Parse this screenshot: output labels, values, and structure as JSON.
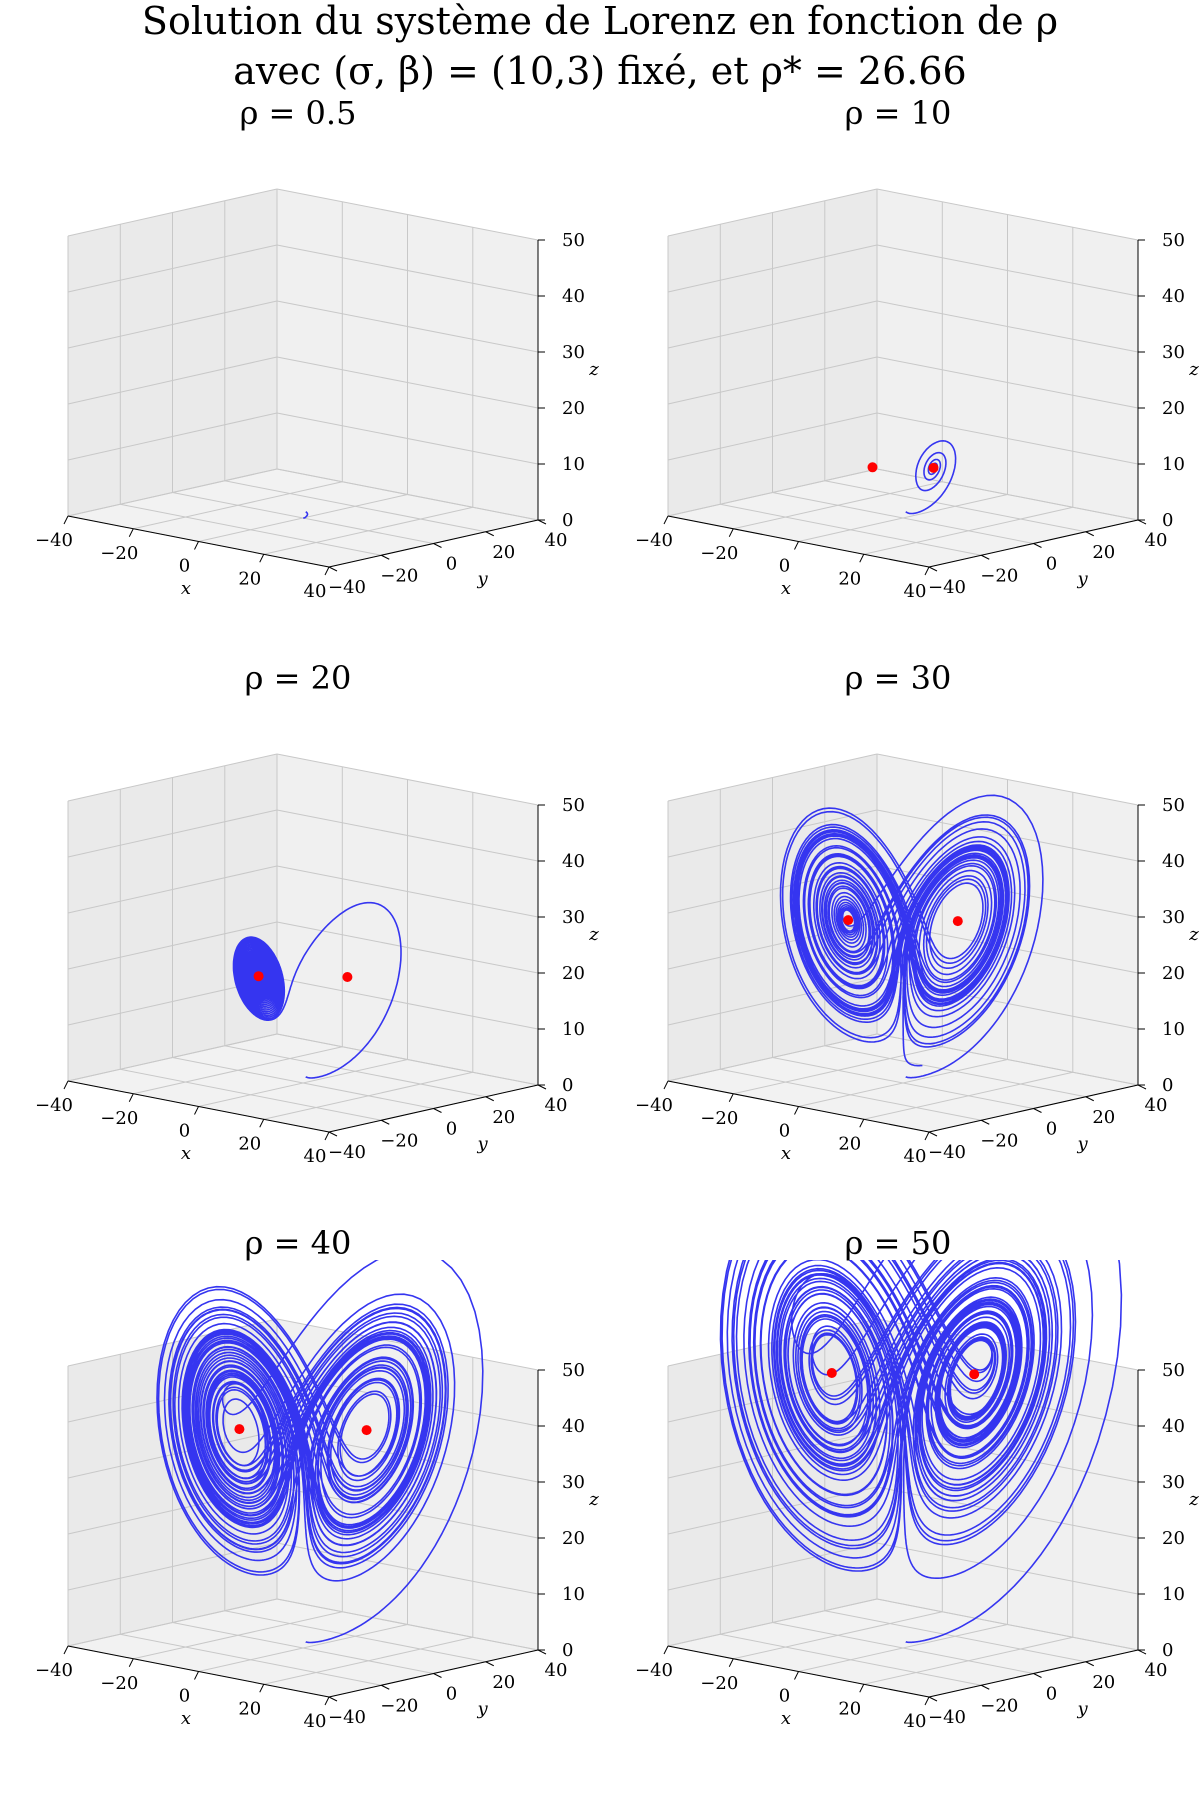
{
  "figure": {
    "title_line1": "Solution du système de Lorenz en fonction de ρ",
    "title_line2": "avec (σ, β) = (10,3) fixé, et ρ* = 26.66"
  },
  "colors": {
    "trajectory": "#3535f0",
    "fixed_point": "#ff0000",
    "pane": "#f2f2f2",
    "grid": "#c8c8c8"
  },
  "chart_data": [
    {
      "type": "line3d",
      "title": "ρ = 0.5",
      "rho": 0.5,
      "sigma": 10,
      "beta": 3,
      "xlabel": "x",
      "ylabel": "y",
      "zlabel": "z",
      "xlim": [
        -40,
        40
      ],
      "ylim": [
        -40,
        40
      ],
      "zlim": [
        0,
        50
      ],
      "xticks": [
        "−40",
        "−20",
        "0",
        "20",
        "40"
      ],
      "yticks": [
        "−40",
        "−20",
        "0",
        "20",
        "40"
      ],
      "zticks": [
        "0",
        "10",
        "20",
        "30",
        "40",
        "50"
      ],
      "fixed_points": []
    },
    {
      "type": "line3d",
      "title": "ρ = 10",
      "rho": 10,
      "sigma": 10,
      "beta": 3,
      "xlabel": "x",
      "ylabel": "y",
      "zlabel": "z",
      "xlim": [
        -40,
        40
      ],
      "ylim": [
        -40,
        40
      ],
      "zlim": [
        0,
        50
      ],
      "xticks": [
        "−40",
        "−20",
        "0",
        "20",
        "40"
      ],
      "yticks": [
        "−40",
        "−20",
        "0",
        "20",
        "40"
      ],
      "zticks": [
        "0",
        "10",
        "20",
        "30",
        "40",
        "50"
      ],
      "fixed_points": [
        [
          -5.196,
          -5.196,
          9
        ],
        [
          5.196,
          5.196,
          9
        ]
      ]
    },
    {
      "type": "line3d",
      "title": "ρ = 20",
      "rho": 20,
      "sigma": 10,
      "beta": 3,
      "xlabel": "x",
      "ylabel": "y",
      "zlabel": "z",
      "xlim": [
        -40,
        40
      ],
      "ylim": [
        -40,
        40
      ],
      "zlim": [
        0,
        50
      ],
      "xticks": [
        "−40",
        "−20",
        "0",
        "20",
        "40"
      ],
      "yticks": [
        "−40",
        "−20",
        "0",
        "20",
        "40"
      ],
      "zticks": [
        "0",
        "10",
        "20",
        "30",
        "40",
        "50"
      ],
      "fixed_points": [
        [
          -7.55,
          -7.55,
          19
        ],
        [
          7.55,
          7.55,
          19
        ]
      ]
    },
    {
      "type": "line3d",
      "title": "ρ = 30",
      "rho": 30,
      "sigma": 10,
      "beta": 3,
      "xlabel": "x",
      "ylabel": "y",
      "zlabel": "z",
      "xlim": [
        -40,
        40
      ],
      "ylim": [
        -40,
        40
      ],
      "zlim": [
        0,
        50
      ],
      "xticks": [
        "−40",
        "−20",
        "0",
        "20",
        "40"
      ],
      "yticks": [
        "−40",
        "−20",
        "0",
        "20",
        "40"
      ],
      "zticks": [
        "0",
        "10",
        "20",
        "30",
        "40",
        "50"
      ],
      "fixed_points": [
        [
          -9.33,
          -9.33,
          29
        ],
        [
          9.33,
          9.33,
          29
        ]
      ]
    },
    {
      "type": "line3d",
      "title": "ρ = 40",
      "rho": 40,
      "sigma": 10,
      "beta": 3,
      "xlabel": "x",
      "ylabel": "y",
      "zlabel": "z",
      "xlim": [
        -40,
        40
      ],
      "ylim": [
        -40,
        40
      ],
      "zlim": [
        0,
        50
      ],
      "xticks": [
        "−40",
        "−20",
        "0",
        "20",
        "40"
      ],
      "yticks": [
        "−40",
        "−20",
        "0",
        "20",
        "40"
      ],
      "zticks": [
        "0",
        "10",
        "20",
        "30",
        "40",
        "50"
      ],
      "fixed_points": [
        [
          -10.82,
          -10.82,
          39
        ],
        [
          10.82,
          10.82,
          39
        ]
      ]
    },
    {
      "type": "line3d",
      "title": "ρ = 50",
      "rho": 50,
      "sigma": 10,
      "beta": 3,
      "xlabel": "x",
      "ylabel": "y",
      "zlabel": "z",
      "xlim": [
        -40,
        40
      ],
      "ylim": [
        -40,
        40
      ],
      "zlim": [
        0,
        50
      ],
      "xticks": [
        "−40",
        "−20",
        "0",
        "20",
        "40"
      ],
      "yticks": [
        "−40",
        "−20",
        "0",
        "20",
        "40"
      ],
      "zticks": [
        "0",
        "10",
        "20",
        "30",
        "40",
        "50"
      ],
      "fixed_points": [
        [
          -12.12,
          -12.12,
          49
        ],
        [
          12.12,
          12.12,
          49
        ]
      ]
    }
  ]
}
